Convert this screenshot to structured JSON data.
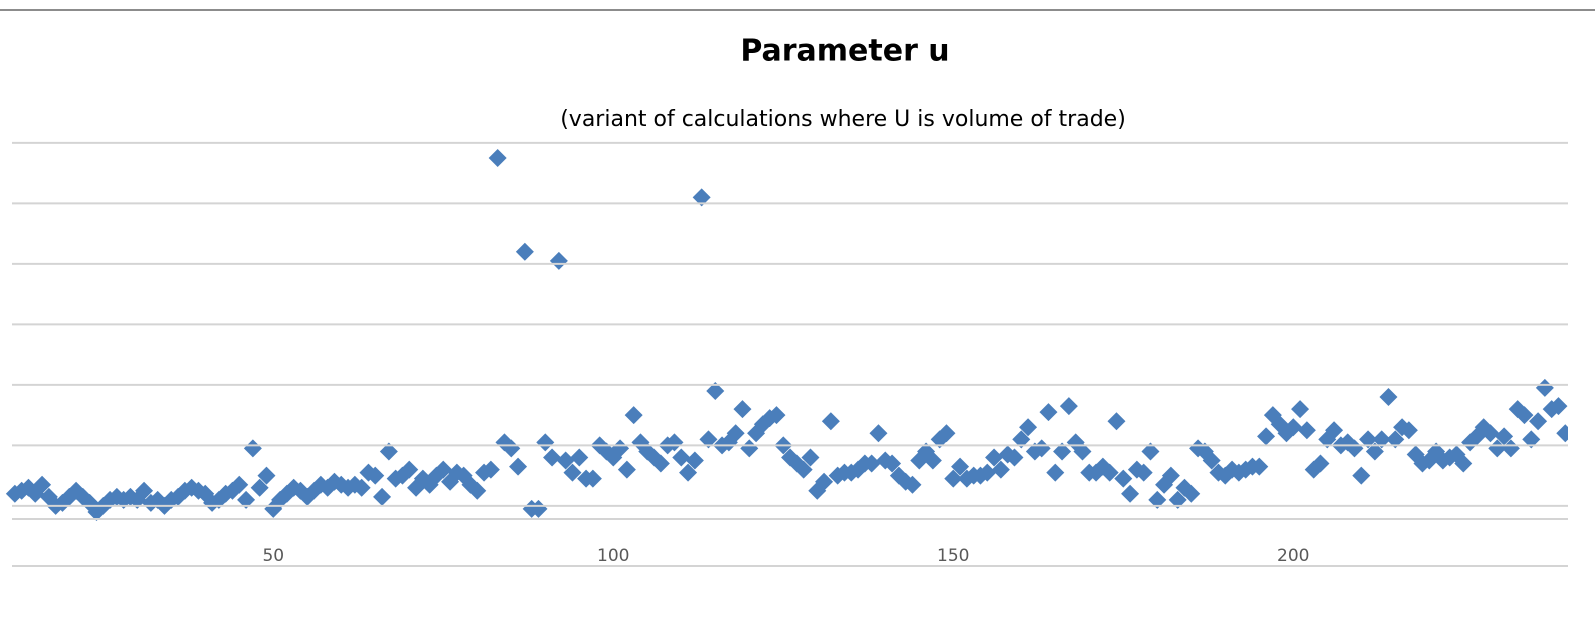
{
  "chart_data": {
    "type": "scatter",
    "title": "Parameter u",
    "subtitle": "(variant of calculations where U is volume of trade)",
    "color": "#4a7ebb",
    "marker": "diamond",
    "grid": true,
    "xlim": [
      11.8,
      240.4
    ],
    "xticks": [
      50,
      100,
      150,
      200
    ],
    "ylim": [
      -0.2,
      6
    ],
    "yticks": [
      0,
      1,
      2,
      3,
      4,
      5,
      6
    ],
    "x": [
      12,
      13,
      14,
      15,
      16,
      17,
      18,
      19,
      20,
      21,
      22,
      23,
      24,
      25,
      26,
      27,
      28,
      29,
      30,
      31,
      32,
      33,
      34,
      35,
      36,
      37,
      38,
      39,
      40,
      41,
      42,
      43,
      44,
      45,
      46,
      47,
      48,
      49,
      50,
      51,
      52,
      53,
      54,
      55,
      56,
      57,
      58,
      59,
      60,
      61,
      62,
      63,
      64,
      65,
      66,
      67,
      68,
      69,
      70,
      71,
      72,
      73,
      74,
      75,
      76,
      77,
      78,
      79,
      80,
      81,
      82,
      83,
      84,
      85,
      86,
      87,
      88,
      89,
      90,
      91,
      92,
      93,
      94,
      95,
      96,
      97,
      98,
      99,
      100,
      101,
      102,
      103,
      104,
      105,
      106,
      107,
      108,
      109,
      110,
      111,
      112,
      113,
      114,
      115,
      116,
      117,
      118,
      119,
      120,
      121,
      122,
      123,
      124,
      125,
      126,
      127,
      128,
      129,
      130,
      131,
      132,
      133,
      134,
      135,
      136,
      137,
      138,
      139,
      140,
      141,
      142,
      143,
      144,
      145,
      146,
      147,
      148,
      149,
      150,
      151,
      152,
      153,
      154,
      155,
      156,
      157,
      158,
      159,
      160,
      161,
      162,
      163,
      164,
      165,
      166,
      167,
      168,
      169,
      170,
      171,
      172,
      173,
      174,
      175,
      176,
      177,
      178,
      179,
      180,
      181,
      182,
      183,
      184,
      185,
      186,
      187,
      188,
      189,
      190,
      191,
      192,
      193,
      194,
      195,
      196,
      197,
      198,
      199,
      200,
      201,
      202,
      203,
      204,
      205,
      206,
      207,
      208,
      209,
      210,
      211,
      212,
      213,
      214,
      215,
      216,
      217,
      218,
      219,
      220,
      221,
      222,
      223,
      224,
      225,
      226,
      227,
      228,
      229,
      230,
      231,
      232,
      233,
      234,
      235,
      236,
      237,
      238,
      239,
      240
    ],
    "values": [
      0.2,
      0.25,
      0.3,
      0.2,
      0.35,
      0.15,
      0.0,
      0.05,
      0.15,
      0.25,
      0.15,
      0.05,
      -0.1,
      0.0,
      0.1,
      0.15,
      0.1,
      0.15,
      0.1,
      0.25,
      0.05,
      0.1,
      0.0,
      0.1,
      0.15,
      0.25,
      0.3,
      0.25,
      0.2,
      0.05,
      0.1,
      0.2,
      0.25,
      0.35,
      0.1,
      0.95,
      0.3,
      0.5,
      -0.05,
      0.1,
      0.2,
      0.3,
      0.25,
      0.15,
      0.25,
      0.35,
      0.3,
      0.4,
      0.35,
      0.3,
      0.35,
      0.3,
      0.55,
      0.5,
      0.15,
      0.9,
      0.45,
      0.5,
      0.6,
      0.3,
      0.45,
      0.35,
      0.5,
      0.6,
      0.4,
      0.55,
      0.5,
      0.35,
      0.25,
      0.55,
      0.6,
      5.75,
      1.05,
      0.95,
      0.65,
      4.2,
      -0.05,
      -0.05,
      1.05,
      0.8,
      4.05,
      0.75,
      0.55,
      0.8,
      0.45,
      0.45,
      1.0,
      0.9,
      0.8,
      0.95,
      0.6,
      1.5,
      1.05,
      0.9,
      0.8,
      0.7,
      1.0,
      1.05,
      0.8,
      0.55,
      0.75,
      5.1,
      1.1,
      1.9,
      1.0,
      1.05,
      1.2,
      1.6,
      0.95,
      1.2,
      1.35,
      1.45,
      1.5,
      1.0,
      0.8,
      0.7,
      0.6,
      0.8,
      0.25,
      0.4,
      1.4,
      0.5,
      0.55,
      0.55,
      0.6,
      0.7,
      0.7,
      1.2,
      0.75,
      0.7,
      0.5,
      0.4,
      0.35,
      0.75,
      0.9,
      0.75,
      1.1,
      1.2,
      0.45,
      0.65,
      0.45,
      0.5,
      0.5,
      0.55,
      0.8,
      0.6,
      0.85,
      0.8,
      1.1,
      1.3,
      0.9,
      0.95,
      1.55,
      0.55,
      0.9,
      1.65,
      1.05,
      0.9,
      0.55,
      0.55,
      0.65,
      0.55,
      1.4,
      0.45,
      0.2,
      0.6,
      0.55,
      0.9,
      0.1,
      0.35,
      0.5,
      0.1,
      0.3,
      0.2,
      0.95,
      0.9,
      0.75,
      0.55,
      0.5,
      0.6,
      0.55,
      0.6,
      0.65,
      0.65,
      1.15,
      1.5,
      1.35,
      1.2,
      1.3,
      1.6,
      1.25,
      0.6,
      0.7,
      1.1,
      1.25,
      1.0,
      1.05,
      0.95,
      0.5,
      1.1,
      0.9,
      1.1,
      1.8,
      1.1,
      1.3,
      1.25,
      0.85,
      0.7,
      0.75,
      0.9,
      0.75,
      0.8,
      0.85,
      0.7,
      1.05,
      1.15,
      1.3,
      1.2,
      0.95,
      1.15,
      0.95,
      1.6,
      1.5,
      1.1,
      1.4,
      1.95,
      1.6,
      1.65,
      1.2
    ]
  }
}
